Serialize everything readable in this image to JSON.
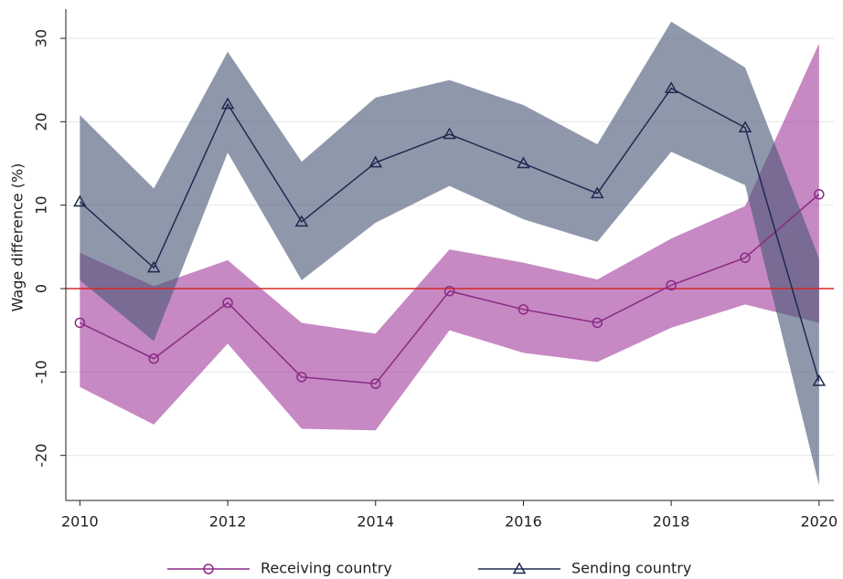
{
  "chart_data": {
    "type": "line",
    "y_label": "Wage difference (%)",
    "x": [
      2010,
      2011,
      2012,
      2013,
      2014,
      2015,
      2016,
      2017,
      2018,
      2019,
      2020
    ],
    "xlim": [
      2009.81,
      2020.2
    ],
    "xticks": [
      2010,
      2012,
      2014,
      2016,
      2018,
      2020
    ],
    "ylim": [
      -25.4,
      33.5
    ],
    "yticks": [
      -20,
      -10,
      0,
      10,
      20,
      30
    ],
    "grid": true,
    "hline": 0,
    "hline_color": "#d62728",
    "legend": "bottom",
    "series": [
      {
        "name": "Receiving country",
        "color": "#8b2a86",
        "band_color": "#a3409e",
        "marker": "circle",
        "values": [
          -4.1,
          -8.4,
          -1.7,
          -10.6,
          -11.4,
          -0.3,
          -2.5,
          -4.1,
          0.4,
          3.7,
          11.3
        ],
        "upper": [
          4.3,
          0.3,
          3.4,
          -4.1,
          -5.4,
          4.7,
          3.1,
          1.1,
          6.0,
          9.9,
          29.4
        ],
        "lower": [
          -11.8,
          -16.3,
          -6.6,
          -16.8,
          -17.0,
          -5.0,
          -7.7,
          -8.8,
          -4.7,
          -1.9,
          -4.1
        ]
      },
      {
        "name": "Sending country",
        "color": "#1e2a50",
        "band_color": "#4a5878",
        "marker": "triangle",
        "values": [
          10.4,
          2.5,
          22.1,
          8.0,
          15.1,
          18.5,
          15.0,
          11.4,
          24.0,
          19.3,
          -11.1
        ],
        "upper": [
          20.8,
          12.0,
          28.4,
          15.2,
          22.9,
          25.0,
          22.0,
          17.3,
          32.0,
          26.5,
          3.6
        ],
        "lower": [
          1.0,
          -6.3,
          16.3,
          1.0,
          7.9,
          12.3,
          8.3,
          5.6,
          16.4,
          12.4,
          -23.6
        ]
      }
    ]
  }
}
